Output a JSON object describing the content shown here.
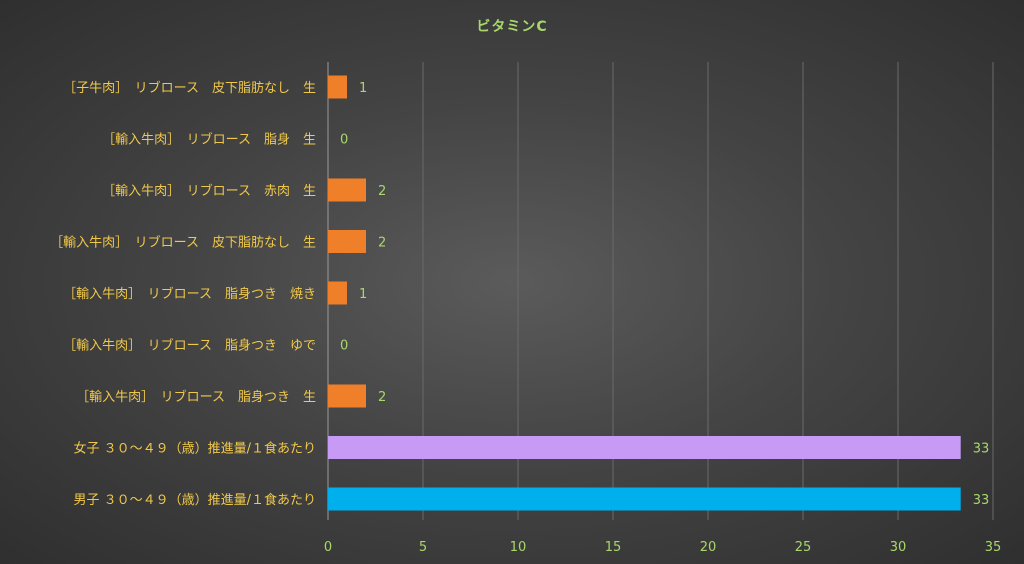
{
  "chart_data": {
    "type": "bar",
    "orientation": "horizontal",
    "title": "ビタミンC",
    "xlabel": "",
    "ylabel": "",
    "xlim": [
      0,
      35
    ],
    "xticks": [
      0,
      5,
      10,
      15,
      20,
      25,
      30,
      35
    ],
    "grid": true,
    "legend": "none",
    "categories": [
      "［子牛肉］　リブロース　皮下脂肪なし　生",
      "［輸入牛肉］　リブロース　脂身　生",
      "［輸入牛肉］　リブロース　赤肉　生",
      "［輸入牛肉］　リブロース　皮下脂肪なし　生",
      "［輸入牛肉］　リブロース　脂身つき　焼き",
      "［輸入牛肉］　リブロース　脂身つき　ゆで",
      "［輸入牛肉］　リブロース　脂身つき　生",
      "女子 ３０～４９（歳）推進量/１食あたり",
      "男子 ３０～４９（歳）推進量/１食あたり"
    ],
    "values": [
      1,
      0,
      2,
      2,
      1,
      0,
      2,
      33.3,
      33.3
    ],
    "data_labels": [
      "1",
      "0",
      "2",
      "2",
      "1",
      "0",
      "2",
      "33",
      "33"
    ],
    "bar_colors": [
      "#f07f2a",
      "#f07f2a",
      "#f07f2a",
      "#f07f2a",
      "#f07f2a",
      "#f07f2a",
      "#f07f2a",
      "#c79bf5",
      "#00b0ec"
    ]
  },
  "colors": {
    "category_text": "#f0c84a",
    "tick_text": "#a8d86a",
    "title_text": "#a8d86a",
    "gridline": "#6a6a6a",
    "axis_line": "#9a9a9a"
  }
}
